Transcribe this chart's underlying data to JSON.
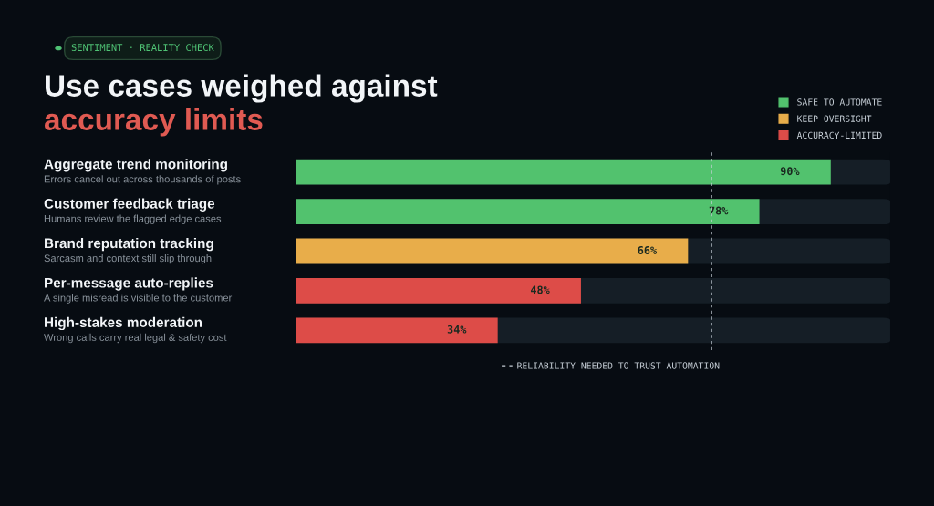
{
  "chart_data": {
    "type": "bar",
    "orientation": "horizontal",
    "title": "Use cases weighed against",
    "subtitle": "accuracy limits",
    "categories": [
      "Aggregate trend monitoring",
      "Customer feedback triage",
      "Brand reputation tracking",
      "Per-message auto-replies",
      "High-stakes moderation"
    ],
    "series": [
      {
        "name": "SAFE TO AUTOMATE",
        "color": "#52c26e",
        "values": [
          90,
          78,
          null,
          null,
          null
        ],
        "value_labels": [
          "90%",
          "78%",
          null,
          null,
          null
        ]
      },
      {
        "name": "KEEP OVERSIGHT",
        "color": "#e8ad4a",
        "values": [
          null,
          null,
          66,
          null,
          null
        ],
        "value_labels": [
          null,
          null,
          "66%",
          null,
          null
        ]
      },
      {
        "name": "ACCURACY-LIMITED",
        "color": "#dd4c48",
        "values": [
          null,
          null,
          null,
          48,
          34
        ],
        "value_labels": [
          null,
          null,
          null,
          "48%",
          "34%"
        ]
      }
    ],
    "xlim": [
      0,
      100
    ],
    "tick_labels": false,
    "legend": "top right",
    "ref_lines": [
      {
        "axis": "x",
        "value": 70,
        "label": "RELIABILITY NEEDED TO TRUST AUTOMATION",
        "color": "#c8d0d8",
        "line_style": "dashed"
      }
    ],
    "annotations": [
      "SENTIMENT · REALITY CHECK",
      "Errors cancel out across thousands of posts",
      "Humans review the flagged edge cases",
      "Sarcasm and context still slip through",
      "A single misread is visible to the customer",
      "Wrong calls carry real legal & safety cost"
    ]
  }
}
